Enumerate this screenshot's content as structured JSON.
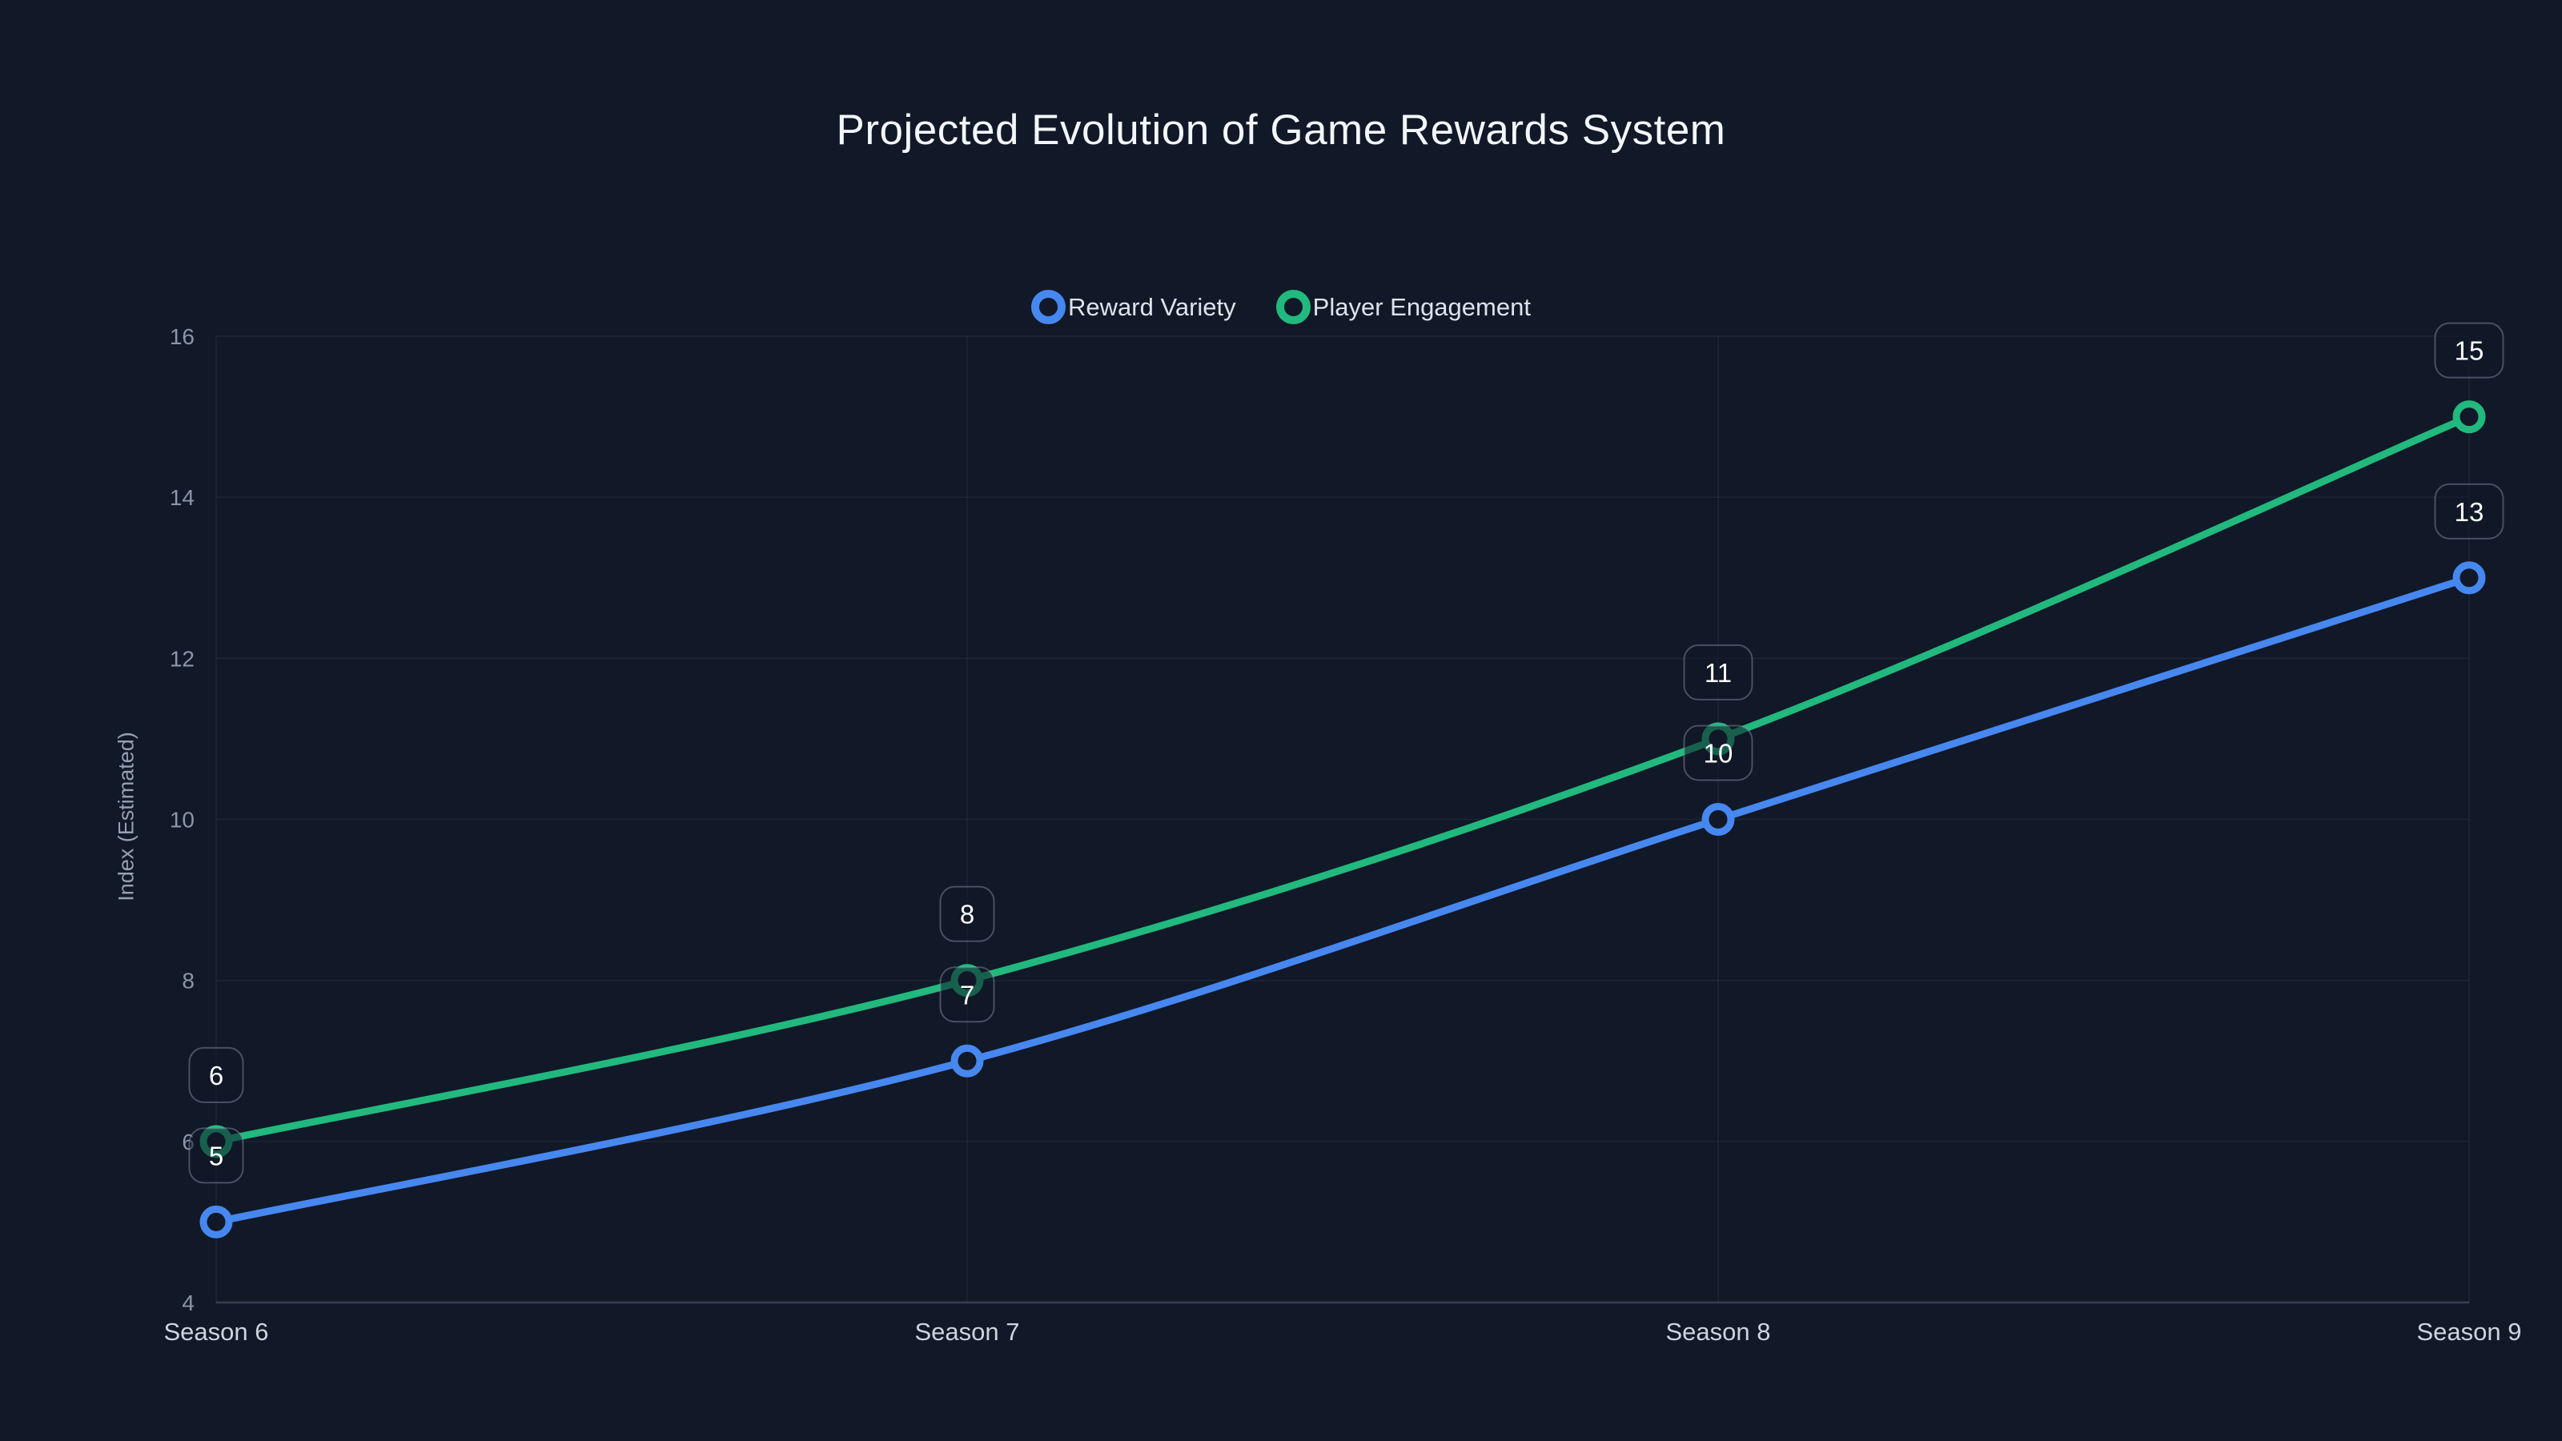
{
  "title": "Projected Evolution of Game Rewards System",
  "colors": {
    "background": "#111827",
    "grid": "rgba(148,163,184,0.10)",
    "axis_line": "rgba(148,163,184,0.30)",
    "y_tick_text": "#8b96a9",
    "x_tick_text": "#ccd4df",
    "title_text": "#f3f6fa",
    "legend_text": "#dde3ec",
    "point_label_text": "#ffffff",
    "point_label_fill": "rgba(17,24,39,0.55)",
    "point_label_border": "rgba(148,163,184,0.42)",
    "series_blue": "#4787f0",
    "series_green": "#21b97d"
  },
  "legend": {
    "items": [
      {
        "label": "Reward Variety",
        "color": "#4787f0"
      },
      {
        "label": "Player Engagement",
        "color": "#21b97d"
      }
    ]
  },
  "chart_data": {
    "type": "line",
    "title": "Projected Evolution of Game Rewards System",
    "categories": [
      "Season 6",
      "Season 7",
      "Season 8",
      "Season 9"
    ],
    "series": [
      {
        "name": "Reward Variety",
        "color": "#4787f0",
        "values": [
          5,
          7,
          10,
          13
        ]
      },
      {
        "name": "Player Engagement",
        "color": "#21b97d",
        "values": [
          6,
          8,
          11,
          15
        ]
      }
    ],
    "xlabel": "",
    "ylabel": "Index (Estimated)",
    "ylim": [
      4,
      16
    ],
    "yticks": [
      4,
      6,
      8,
      10,
      12,
      14,
      16
    ],
    "grid": true,
    "legend_position": "top",
    "point_labels": true,
    "smooth": true
  }
}
